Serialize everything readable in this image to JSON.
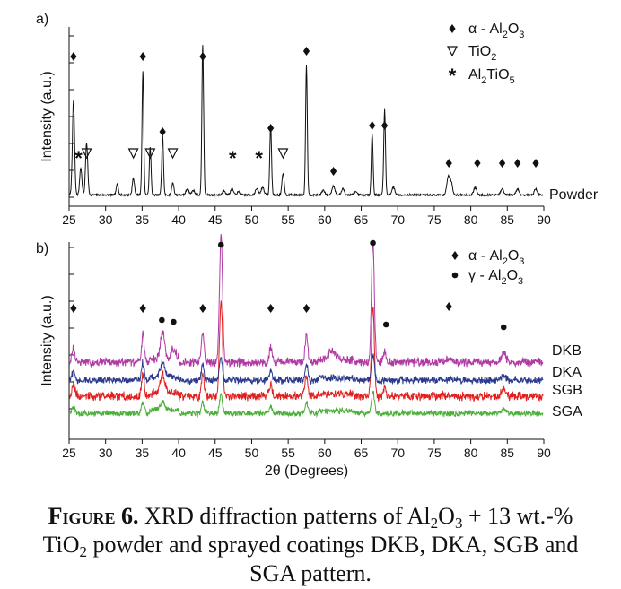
{
  "chart_data": [
    {
      "type": "line",
      "panel_label": "a)",
      "xlim": [
        25,
        90
      ],
      "x_ticks": [
        25,
        30,
        35,
        40,
        45,
        50,
        55,
        60,
        65,
        70,
        75,
        80,
        85,
        90
      ],
      "ylabel": "Intensity (a.u.)",
      "grid": false,
      "series": [
        {
          "name": "Powder",
          "color": "#111111",
          "peaks": [
            {
              "x": 25.6,
              "y": 0.62,
              "w": 0.15
            },
            {
              "x": 26.6,
              "y": 0.18,
              "w": 0.15
            },
            {
              "x": 27.4,
              "y": 0.34,
              "w": 0.15
            },
            {
              "x": 31.6,
              "y": 0.07,
              "w": 0.15
            },
            {
              "x": 33.8,
              "y": 0.11,
              "w": 0.15
            },
            {
              "x": 35.1,
              "y": 0.81,
              "w": 0.12
            },
            {
              "x": 36.1,
              "y": 0.31,
              "w": 0.12
            },
            {
              "x": 37.8,
              "y": 0.39,
              "w": 0.12
            },
            {
              "x": 39.2,
              "y": 0.08,
              "w": 0.15
            },
            {
              "x": 41.2,
              "y": 0.04,
              "w": 0.2
            },
            {
              "x": 42.0,
              "y": 0.03,
              "w": 0.2
            },
            {
              "x": 43.3,
              "y": 0.98,
              "w": 0.12
            },
            {
              "x": 46.2,
              "y": 0.03,
              "w": 0.2
            },
            {
              "x": 47.3,
              "y": 0.04,
              "w": 0.2
            },
            {
              "x": 48.2,
              "y": 0.02,
              "w": 0.2
            },
            {
              "x": 50.7,
              "y": 0.04,
              "w": 0.2
            },
            {
              "x": 51.5,
              "y": 0.05,
              "w": 0.2
            },
            {
              "x": 52.6,
              "y": 0.46,
              "w": 0.12
            },
            {
              "x": 54.3,
              "y": 0.14,
              "w": 0.15
            },
            {
              "x": 57.5,
              "y": 0.85,
              "w": 0.12
            },
            {
              "x": 59.8,
              "y": 0.03,
              "w": 0.2
            },
            {
              "x": 61.2,
              "y": 0.06,
              "w": 0.2
            },
            {
              "x": 62.5,
              "y": 0.04,
              "w": 0.2
            },
            {
              "x": 64.2,
              "y": 0.02,
              "w": 0.2
            },
            {
              "x": 66.5,
              "y": 0.4,
              "w": 0.12
            },
            {
              "x": 68.2,
              "y": 0.56,
              "w": 0.12
            },
            {
              "x": 69.4,
              "y": 0.05,
              "w": 0.2
            },
            {
              "x": 76.9,
              "y": 0.11,
              "w": 0.2
            },
            {
              "x": 77.3,
              "y": 0.08,
              "w": 0.2
            },
            {
              "x": 80.6,
              "y": 0.05,
              "w": 0.2
            },
            {
              "x": 84.3,
              "y": 0.04,
              "w": 0.2
            },
            {
              "x": 86.4,
              "y": 0.04,
              "w": 0.2
            },
            {
              "x": 88.9,
              "y": 0.04,
              "w": 0.2
            }
          ]
        }
      ],
      "markers": [
        {
          "symbol": "diamond",
          "x": 25.6
        },
        {
          "symbol": "diamond",
          "x": 35.1
        },
        {
          "symbol": "diamond",
          "x": 37.8
        },
        {
          "symbol": "diamond",
          "x": 43.3
        },
        {
          "symbol": "diamond",
          "x": 52.6
        },
        {
          "symbol": "diamond",
          "x": 57.5
        },
        {
          "symbol": "diamond",
          "x": 61.2
        },
        {
          "symbol": "diamond",
          "x": 66.5
        },
        {
          "symbol": "diamond",
          "x": 68.2
        },
        {
          "symbol": "diamond",
          "x": 77.0
        },
        {
          "symbol": "diamond",
          "x": 80.9
        },
        {
          "symbol": "diamond",
          "x": 84.3
        },
        {
          "symbol": "diamond",
          "x": 86.4
        },
        {
          "symbol": "diamond",
          "x": 88.9
        },
        {
          "symbol": "triangle",
          "x": 27.4
        },
        {
          "symbol": "triangle",
          "x": 33.8
        },
        {
          "symbol": "triangle",
          "x": 36.1
        },
        {
          "symbol": "triangle",
          "x": 39.2
        },
        {
          "symbol": "triangle",
          "x": 54.3
        },
        {
          "symbol": "asterisk",
          "x": 26.3
        },
        {
          "symbol": "asterisk",
          "x": 47.4
        },
        {
          "symbol": "asterisk",
          "x": 51.0
        }
      ],
      "legend": [
        {
          "symbol": "diamond",
          "greek": "α",
          "dash": "-",
          "text": "Al",
          "sub1": "2",
          "text2": "O",
          "sub2": "3"
        },
        {
          "symbol": "triangle",
          "greek": "",
          "dash": "",
          "text": "TiO",
          "sub1": "2",
          "text2": "",
          "sub2": ""
        },
        {
          "symbol": "asterisk",
          "greek": "",
          "dash": "",
          "text": "Al",
          "sub1": "2",
          "text2": "TiO",
          "sub2": "5"
        }
      ]
    },
    {
      "type": "line",
      "panel_label": "b)",
      "xlabel": "2θ (Degrees)",
      "xlim": [
        25,
        90
      ],
      "x_ticks": [
        25,
        30,
        35,
        40,
        45,
        50,
        55,
        60,
        65,
        70,
        75,
        80,
        85,
        90
      ],
      "ylabel": "Intensity (a.u.)",
      "grid": false,
      "series": [
        {
          "name": "DKB",
          "color": "#b03aa4",
          "noise": 0.03,
          "peaks": [
            {
              "x": 25.6,
              "y": 0.06,
              "w": 0.2
            },
            {
              "x": 35.1,
              "y": 0.13,
              "w": 0.18
            },
            {
              "x": 37.8,
              "y": 0.12,
              "w": 0.3
            },
            {
              "x": 39.3,
              "y": 0.05,
              "w": 0.3
            },
            {
              "x": 43.3,
              "y": 0.14,
              "w": 0.18
            },
            {
              "x": 45.8,
              "y": 0.6,
              "w": 0.2
            },
            {
              "x": 52.6,
              "y": 0.07,
              "w": 0.2
            },
            {
              "x": 57.5,
              "y": 0.12,
              "w": 0.2
            },
            {
              "x": 61.0,
              "y": 0.04,
              "w": 0.6
            },
            {
              "x": 66.6,
              "y": 0.55,
              "w": 0.2
            },
            {
              "x": 68.2,
              "y": 0.05,
              "w": 0.2
            },
            {
              "x": 77.2,
              "y": 0.02,
              "w": 0.3
            },
            {
              "x": 84.5,
              "y": 0.04,
              "w": 0.3
            }
          ]
        },
        {
          "name": "DKA",
          "color": "#2b3a8c",
          "noise": 0.025,
          "peaks": [
            {
              "x": 25.6,
              "y": 0.04,
              "w": 0.2
            },
            {
              "x": 35.1,
              "y": 0.08,
              "w": 0.18
            },
            {
              "x": 37.8,
              "y": 0.07,
              "w": 0.3
            },
            {
              "x": 43.3,
              "y": 0.08,
              "w": 0.18
            },
            {
              "x": 45.8,
              "y": 0.1,
              "w": 0.2
            },
            {
              "x": 52.6,
              "y": 0.04,
              "w": 0.2
            },
            {
              "x": 57.5,
              "y": 0.07,
              "w": 0.2
            },
            {
              "x": 66.6,
              "y": 0.12,
              "w": 0.2
            },
            {
              "x": 84.5,
              "y": 0.02,
              "w": 0.3
            }
          ]
        },
        {
          "name": "SGB",
          "color": "#e02020",
          "noise": 0.03,
          "peaks": [
            {
              "x": 25.6,
              "y": 0.05,
              "w": 0.2
            },
            {
              "x": 35.1,
              "y": 0.1,
              "w": 0.18
            },
            {
              "x": 37.8,
              "y": 0.09,
              "w": 0.3
            },
            {
              "x": 43.3,
              "y": 0.11,
              "w": 0.18
            },
            {
              "x": 45.8,
              "y": 0.45,
              "w": 0.2
            },
            {
              "x": 52.6,
              "y": 0.05,
              "w": 0.2
            },
            {
              "x": 57.5,
              "y": 0.1,
              "w": 0.2
            },
            {
              "x": 66.6,
              "y": 0.42,
              "w": 0.2
            },
            {
              "x": 68.2,
              "y": 0.04,
              "w": 0.2
            },
            {
              "x": 84.5,
              "y": 0.03,
              "w": 0.3
            }
          ]
        },
        {
          "name": "SGA",
          "color": "#4caf3a",
          "noise": 0.02,
          "peaks": [
            {
              "x": 25.6,
              "y": 0.03,
              "w": 0.2
            },
            {
              "x": 35.1,
              "y": 0.05,
              "w": 0.18
            },
            {
              "x": 37.8,
              "y": 0.04,
              "w": 0.3
            },
            {
              "x": 43.3,
              "y": 0.05,
              "w": 0.18
            },
            {
              "x": 45.8,
              "y": 0.09,
              "w": 0.2
            },
            {
              "x": 52.6,
              "y": 0.03,
              "w": 0.2
            },
            {
              "x": 57.5,
              "y": 0.05,
              "w": 0.2
            },
            {
              "x": 66.6,
              "y": 0.1,
              "w": 0.2
            },
            {
              "x": 84.5,
              "y": 0.02,
              "w": 0.3
            }
          ]
        }
      ],
      "markers": [
        {
          "symbol": "diamond",
          "x": 25.6
        },
        {
          "symbol": "diamond",
          "x": 35.1
        },
        {
          "symbol": "diamond",
          "x": 43.3
        },
        {
          "symbol": "diamond",
          "x": 52.6
        },
        {
          "symbol": "diamond",
          "x": 57.5
        },
        {
          "symbol": "diamond",
          "x": 77.0
        },
        {
          "symbol": "dot",
          "x": 45.8
        },
        {
          "symbol": "dot",
          "x": 37.7
        },
        {
          "symbol": "dot",
          "x": 39.3
        },
        {
          "symbol": "dot",
          "x": 66.6
        },
        {
          "symbol": "dot",
          "x": 68.4
        },
        {
          "symbol": "dot",
          "x": 84.5
        }
      ],
      "legend": [
        {
          "symbol": "diamond",
          "greek": "α",
          "dash": "-",
          "text": "Al",
          "sub1": "2",
          "text2": "O",
          "sub2": "3"
        },
        {
          "symbol": "dot",
          "greek": "γ",
          "dash": "-",
          "text": "Al",
          "sub1": "2",
          "text2": "O",
          "sub2": "3"
        }
      ]
    }
  ],
  "caption": {
    "lead": "Figure",
    "number": "6.",
    "line1_a": "XRD diffraction patterns of Al",
    "sub_a": "2",
    "line1_b": "O",
    "sub_b": "3",
    "line1_c": " + 13 wt.-%",
    "line2_a": "TiO",
    "sub_c": "2",
    "line2_b": " powder and sprayed coatings DKB, DKA, SGB and",
    "line3": "SGA pattern."
  }
}
